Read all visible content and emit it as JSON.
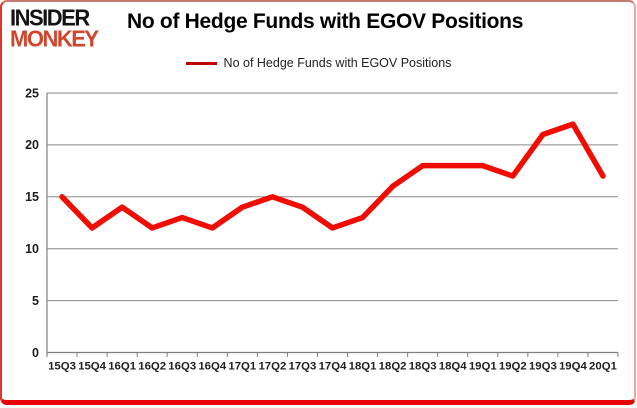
{
  "logo": {
    "line1": "INSIDER",
    "line2": "MONKEY"
  },
  "header": {
    "title": "No of Hedge Funds with EGOV Positions"
  },
  "legend": {
    "label": "No of Hedge Funds with EGOV Positions"
  },
  "colors": {
    "line": "#f00d00",
    "legend_line": "#c00000",
    "gridline": "#898989",
    "axis_line": "#808080",
    "axis_text": "#1f1f1f",
    "logo_insider": "#131313",
    "logo_monkey": "#d0452c",
    "frame_bottom": "#e60000",
    "background": "#ffffff"
  },
  "chart_data": {
    "type": "line",
    "title": "No of Hedge Funds with EGOV Positions",
    "categories": [
      "15Q3",
      "15Q4",
      "16Q1",
      "16Q2",
      "16Q3",
      "16Q4",
      "17Q1",
      "17Q2",
      "17Q3",
      "17Q4",
      "18Q1",
      "18Q2",
      "18Q3",
      "18Q4",
      "19Q1",
      "19Q2",
      "19Q3",
      "19Q4",
      "20Q1"
    ],
    "series": [
      {
        "name": "No of Hedge Funds with EGOV Positions",
        "values": [
          15,
          12,
          14,
          12,
          13,
          12,
          14,
          15,
          14,
          12,
          13,
          16,
          18,
          18,
          18,
          17,
          21,
          22,
          17
        ]
      }
    ],
    "xlabel": "",
    "ylabel": "",
    "ylim": [
      0,
      25
    ],
    "yticks": [
      0,
      5,
      10,
      15,
      20,
      25
    ],
    "grid": true,
    "legend_position": "top-center"
  }
}
